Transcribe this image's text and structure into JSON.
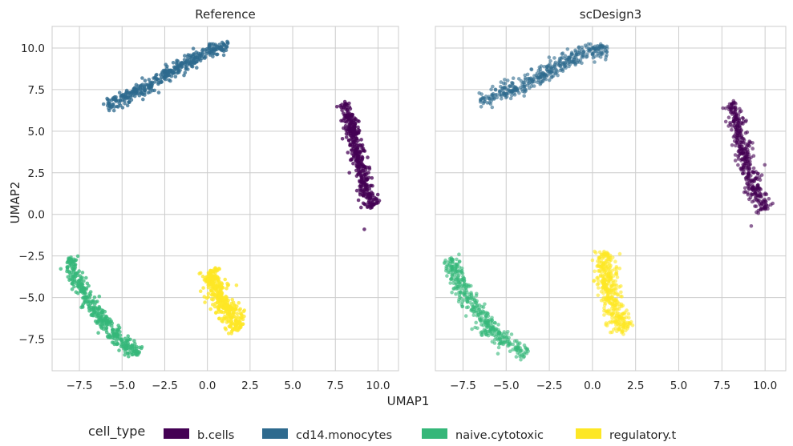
{
  "chart_data": {
    "type": "scatter",
    "xlabel": "UMAP1",
    "ylabel": "UMAP2",
    "xlim": [
      -9.1,
      11.2
    ],
    "ylim": [
      -9.4,
      11.3
    ],
    "xticks": [
      -7.5,
      -5.0,
      -2.5,
      0.0,
      2.5,
      5.0,
      7.5,
      10.0
    ],
    "xtick_labels": [
      "−7.5",
      "−5.0",
      "−2.5",
      "0.0",
      "2.5",
      "5.0",
      "7.5",
      "10.0"
    ],
    "yticks": [
      -7.5,
      -5.0,
      -2.5,
      0.0,
      2.5,
      5.0,
      7.5,
      10.0
    ],
    "ytick_labels": [
      "−7.5",
      "−5.0",
      "−2.5",
      "0.0",
      "2.5",
      "5.0",
      "7.5",
      "10.0"
    ],
    "grid": true,
    "legend": {
      "title": "cell_type",
      "placement": "bottom",
      "entries": [
        "b.cells",
        "cd14.monocytes",
        "naive.cytotoxic",
        "regulatory.t"
      ]
    },
    "colors": {
      "b.cells": "#440154",
      "cd14.monocytes": "#2e6a8e",
      "naive.cytotoxic": "#35b779",
      "regulatory.t": "#fde725"
    },
    "panels": [
      {
        "title": "Reference",
        "clusters": [
          {
            "name": "b.cells",
            "spine": [
              [
                8.0,
                6.7
              ],
              [
                8.6,
                4.8
              ],
              [
                9.0,
                2.6
              ],
              [
                9.4,
                1.0
              ],
              [
                9.8,
                0.5
              ]
            ],
            "tail": [
              [
                9.2,
                -0.9
              ]
            ],
            "spread": 0.35
          },
          {
            "name": "cd14.monocytes",
            "spine": [
              [
                -5.8,
                6.6
              ],
              [
                -4.5,
                7.2
              ],
              [
                -3.0,
                8.0
              ],
              [
                -1.5,
                8.9
              ],
              [
                0.0,
                9.8
              ],
              [
                1.2,
                10.2
              ]
            ],
            "spread": 0.35
          },
          {
            "name": "naive.cytotoxic",
            "spine": [
              [
                -8.2,
                -2.6
              ],
              [
                -7.4,
                -4.4
              ],
              [
                -6.6,
                -5.8
              ],
              [
                -5.6,
                -7.0
              ],
              [
                -4.8,
                -7.9
              ],
              [
                -4.0,
                -8.4
              ]
            ],
            "spread": 0.35
          },
          {
            "name": "regulatory.t",
            "spine": [
              [
                0.2,
                -3.3
              ],
              [
                0.4,
                -4.4
              ],
              [
                1.0,
                -5.3
              ],
              [
                1.4,
                -6.2
              ],
              [
                2.0,
                -6.8
              ]
            ],
            "spread": 0.55
          }
        ]
      },
      {
        "title": "scDesign3",
        "clusters": [
          {
            "name": "b.cells",
            "spine": [
              [
                8.0,
                6.7
              ],
              [
                8.5,
                4.8
              ],
              [
                8.9,
                3.0
              ],
              [
                9.4,
                1.5
              ],
              [
                10.0,
                0.3
              ]
            ],
            "tail": [
              [
                9.2,
                -0.7
              ]
            ],
            "spread": 0.4
          },
          {
            "name": "cd14.monocytes",
            "spine": [
              [
                -6.5,
                6.8
              ],
              [
                -5.5,
                7.2
              ],
              [
                -4.0,
                7.8
              ],
              [
                -2.5,
                8.6
              ],
              [
                -1.0,
                9.5
              ],
              [
                0.8,
                10.0
              ]
            ],
            "spread": 0.45
          },
          {
            "name": "naive.cytotoxic",
            "spine": [
              [
                -8.3,
                -2.6
              ],
              [
                -7.6,
                -4.4
              ],
              [
                -6.8,
                -5.8
              ],
              [
                -5.8,
                -7.0
              ],
              [
                -4.8,
                -7.8
              ],
              [
                -3.8,
                -8.5
              ]
            ],
            "spread": 0.45
          },
          {
            "name": "regulatory.t",
            "spine": [
              [
                0.6,
                -2.2
              ],
              [
                0.8,
                -3.8
              ],
              [
                1.1,
                -5.2
              ],
              [
                1.5,
                -6.5
              ],
              [
                2.0,
                -7.0
              ]
            ],
            "spread": 0.55
          }
        ]
      }
    ]
  }
}
